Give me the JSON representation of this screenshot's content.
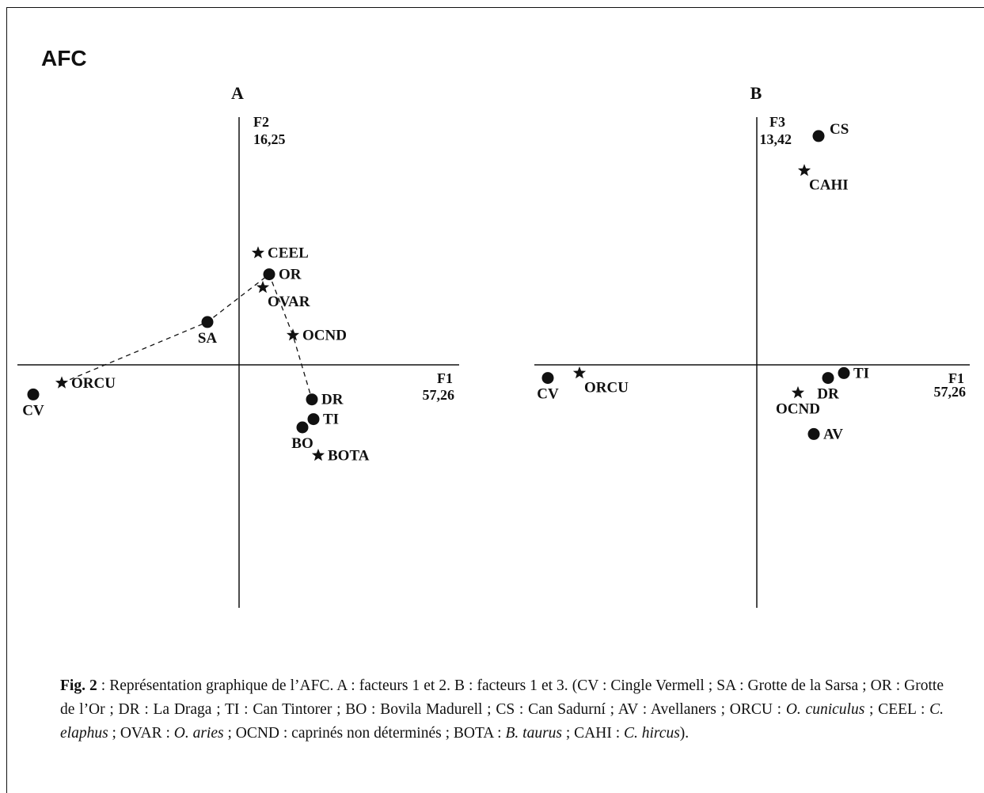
{
  "page": {
    "title": "AFC"
  },
  "chart_data": [
    {
      "type": "scatter",
      "panel": "A",
      "xaxis": {
        "name": "F1",
        "value": "57,26"
      },
      "yaxis": {
        "name": "F2",
        "value": "16,25"
      },
      "xlim": [
        -1.4,
        1.4
      ],
      "ylim": [
        -1.5,
        1.5
      ],
      "points": [
        {
          "label": "CV",
          "marker": "circle",
          "x": -1.3,
          "y": -0.18,
          "label_pos": "below"
        },
        {
          "label": "ORCU",
          "marker": "star",
          "x": -1.12,
          "y": -0.11,
          "label_pos": "right"
        },
        {
          "label": "SA",
          "marker": "circle",
          "x": -0.2,
          "y": 0.26,
          "label_pos": "below"
        },
        {
          "label": "CEEL",
          "marker": "star",
          "x": 0.12,
          "y": 0.68,
          "label_pos": "right"
        },
        {
          "label": "OR",
          "marker": "circle",
          "x": 0.19,
          "y": 0.55,
          "label_pos": "right"
        },
        {
          "label": "OVAR",
          "marker": "star",
          "x": 0.15,
          "y": 0.47,
          "label_pos": "below-right"
        },
        {
          "label": "OCND",
          "marker": "star",
          "x": 0.34,
          "y": 0.18,
          "label_pos": "right"
        },
        {
          "label": "DR",
          "marker": "circle",
          "x": 0.46,
          "y": -0.21,
          "label_pos": "right"
        },
        {
          "label": "TI",
          "marker": "circle",
          "x": 0.47,
          "y": -0.33,
          "label_pos": "right"
        },
        {
          "label": "BO",
          "marker": "circle",
          "x": 0.4,
          "y": -0.38,
          "label_pos": "below"
        },
        {
          "label": "BOTA",
          "marker": "star",
          "x": 0.5,
          "y": -0.55,
          "label_pos": "right"
        }
      ],
      "path": [
        "ORCU",
        "SA",
        "OR",
        "OCND",
        "DR"
      ]
    },
    {
      "type": "scatter",
      "panel": "B",
      "xaxis": {
        "name": "F1",
        "value": "57,26"
      },
      "yaxis": {
        "name": "F3",
        "value": "13,42"
      },
      "xlim": [
        -1.4,
        1.4
      ],
      "ylim": [
        -1.5,
        1.5
      ],
      "points": [
        {
          "label": "CV",
          "marker": "circle",
          "x": -1.32,
          "y": -0.08,
          "label_pos": "below"
        },
        {
          "label": "ORCU",
          "marker": "star",
          "x": -1.12,
          "y": -0.05,
          "label_pos": "below-right"
        },
        {
          "label": "CS",
          "marker": "circle",
          "x": 0.39,
          "y": 1.39,
          "label_pos": "right-up"
        },
        {
          "label": "CAHI",
          "marker": "star",
          "x": 0.3,
          "y": 1.18,
          "label_pos": "below-right"
        },
        {
          "label": "TI",
          "marker": "circle",
          "x": 0.55,
          "y": -0.05,
          "label_pos": "right"
        },
        {
          "label": "DR",
          "marker": "circle",
          "x": 0.45,
          "y": -0.08,
          "label_pos": "below"
        },
        {
          "label": "OCND",
          "marker": "star",
          "x": 0.26,
          "y": -0.17,
          "label_pos": "below"
        },
        {
          "label": "AV",
          "marker": "circle",
          "x": 0.36,
          "y": -0.42,
          "label_pos": "right"
        }
      ],
      "path": []
    }
  ],
  "caption": {
    "fig_label": "Fig. 2",
    "segments": [
      {
        "text": " : Représentation graphique de l’AFC. A : facteurs 1 et 2. B : facteurs 1 et 3. (CV : Cingle Vermell ; SA : Grotte de la Sarsa ; OR : Grotte de l’Or ; DR : La Draga ; TI : Can Tintorer ; BO : Bovila Madurell ; CS : Can Sadurní ; AV : Avellaners ; ORCU : ",
        "italic": false
      },
      {
        "text": "O. cuniculus",
        "italic": true
      },
      {
        "text": " ; CEEL : ",
        "italic": false
      },
      {
        "text": "C. elaphus",
        "italic": true
      },
      {
        "text": " ; OVAR : ",
        "italic": false
      },
      {
        "text": "O. aries",
        "italic": true
      },
      {
        "text": " ; OCND : caprinés non déterminés ; BOTA : ",
        "italic": false
      },
      {
        "text": "B. taurus",
        "italic": true
      },
      {
        "text": " ; CAHI : ",
        "italic": false
      },
      {
        "text": "C. hircus",
        "italic": true
      },
      {
        "text": ").",
        "italic": false
      }
    ]
  }
}
